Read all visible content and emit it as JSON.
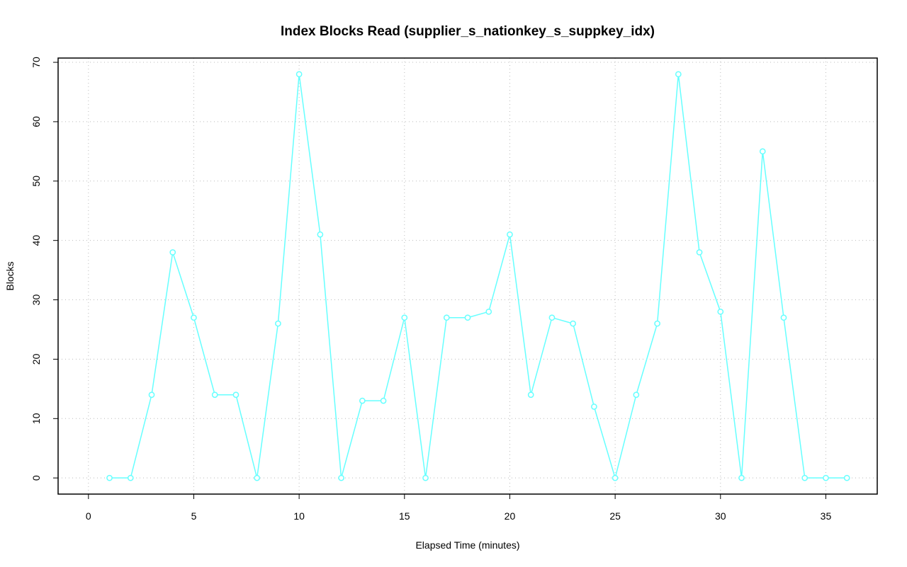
{
  "chart_data": {
    "type": "line",
    "title": "Index Blocks Read (supplier_s_nationkey_s_suppkey_idx)",
    "x_label": "Elapsed Time (minutes)",
    "y_label": "Blocks",
    "x": [
      1,
      2,
      3,
      4,
      5,
      6,
      7,
      8,
      9,
      10,
      11,
      12,
      13,
      14,
      15,
      16,
      17,
      18,
      19,
      20,
      21,
      22,
      23,
      24,
      25,
      26,
      27,
      28,
      29,
      30,
      31,
      32,
      33,
      34,
      35,
      36
    ],
    "series": [
      {
        "name": "Blocks",
        "color": "#66ffff",
        "values": [
          0,
          0,
          14,
          38,
          27,
          14,
          14,
          0,
          26,
          68,
          41,
          0,
          13,
          13,
          27,
          0,
          27,
          27,
          28,
          41,
          14,
          27,
          26,
          12,
          0,
          14,
          26,
          68,
          38,
          28,
          0,
          55,
          27,
          0,
          0,
          0
        ]
      }
    ],
    "xlim": [
      -1.44,
      37.44
    ],
    "xticks": [
      0,
      5,
      10,
      15,
      20,
      25,
      30,
      35
    ],
    "ylim": [
      -2.72,
      70.72
    ],
    "yticks": [
      0,
      10,
      20,
      30,
      40,
      50,
      60,
      70
    ],
    "grid": true
  }
}
